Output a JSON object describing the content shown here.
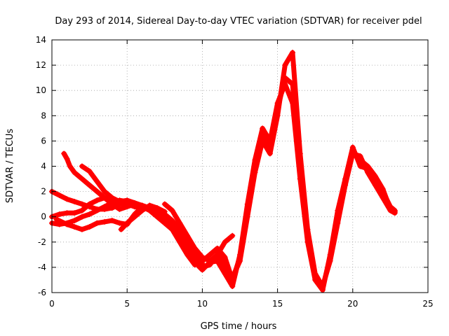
{
  "chart_data": {
    "type": "scatter",
    "title": "Day 293 of 2014, Sidereal Day-to-day VTEC variation (SDTVAR) for receiver pdel",
    "xlabel": "GPS time / hours",
    "ylabel": "SDTVAR / TECUs",
    "xlim": [
      0,
      25
    ],
    "ylim": [
      -6,
      14
    ],
    "xticks": [
      "0",
      "5",
      "10",
      "15",
      "20",
      "25"
    ],
    "yticks": [
      "-6",
      "-4",
      "-2",
      "0",
      "2",
      "4",
      "6",
      "8",
      "10",
      "12",
      "14"
    ],
    "grid": true,
    "marker": "+",
    "color": "#ff0000",
    "series": [
      {
        "name": "trace-a",
        "x": [
          0.0,
          0.5,
          1.0,
          1.5,
          2.0,
          2.5,
          3.0,
          3.5,
          4.0,
          4.5,
          5.0,
          5.5,
          6.0,
          6.5,
          7.0,
          7.5,
          8.0,
          8.5,
          9.0,
          9.5,
          10.0,
          10.5,
          11.0,
          11.5,
          12.0,
          12.5,
          13.0,
          13.5,
          14.0,
          14.5,
          15.0,
          15.5,
          16.0,
          16.5,
          17.0,
          17.5,
          18.0,
          18.5,
          19.0,
          19.5,
          20.0,
          20.5,
          21.0,
          21.5,
          22.0,
          22.5,
          22.8
        ],
        "y": [
          2.0,
          1.7,
          1.4,
          1.2,
          1.0,
          0.8,
          0.6,
          0.6,
          0.7,
          1.0,
          1.1,
          1.0,
          0.8,
          0.6,
          0.3,
          0.0,
          -0.5,
          -1.2,
          -2.2,
          -3.3,
          -4.0,
          -3.8,
          -3.0,
          -3.8,
          -4.8,
          -3.5,
          0.0,
          3.5,
          6.0,
          5.0,
          8.0,
          12.0,
          13.0,
          5.0,
          -1.0,
          -4.5,
          -5.5,
          -3.5,
          -0.5,
          2.5,
          5.0,
          4.8,
          3.5,
          2.5,
          1.5,
          0.5,
          0.3
        ]
      },
      {
        "name": "trace-b",
        "x": [
          0.0,
          0.5,
          1.0,
          1.5,
          2.0,
          2.5,
          3.0,
          3.5,
          4.0,
          4.5,
          5.0,
          5.5,
          6.0,
          6.5,
          7.0,
          7.5,
          8.0,
          8.5,
          9.0,
          9.5,
          10.0,
          10.5,
          11.0,
          11.5,
          12.0,
          12.5,
          13.0,
          13.5,
          14.0,
          14.5,
          15.0,
          15.5,
          16.0,
          16.5,
          17.0,
          17.5,
          18.0,
          18.5,
          19.0,
          19.5,
          20.0,
          20.5,
          21.0,
          21.5,
          22.0,
          22.5,
          22.8
        ],
        "y": [
          0.0,
          0.2,
          0.3,
          0.3,
          0.5,
          1.0,
          1.3,
          1.5,
          1.4,
          1.2,
          1.0,
          0.8,
          0.7,
          0.6,
          0.3,
          0.0,
          -0.8,
          -1.5,
          -2.5,
          -3.6,
          -4.2,
          -3.6,
          -3.5,
          -4.5,
          -5.5,
          -3.0,
          1.0,
          4.5,
          7.0,
          6.0,
          9.0,
          10.5,
          9.0,
          3.0,
          -2.0,
          -5.0,
          -5.8,
          -3.0,
          0.5,
          3.0,
          5.5,
          4.0,
          3.8,
          3.0,
          2.0,
          0.8,
          0.5
        ]
      },
      {
        "name": "trace-c",
        "x": [
          0.0,
          0.5,
          1.0,
          1.5,
          2.0,
          2.5,
          3.0,
          3.5,
          4.0,
          4.5,
          5.0,
          5.5,
          6.0,
          6.5,
          7.0,
          7.5,
          8.0,
          8.5,
          9.0,
          9.5,
          10.0,
          10.5,
          11.0,
          11.5,
          12.0,
          12.5,
          13.0,
          13.5,
          14.0,
          14.5,
          15.0,
          15.5,
          16.0,
          16.5,
          17.0,
          17.5,
          18.0,
          18.5,
          19.0,
          19.5,
          20.0,
          20.5,
          21.0,
          21.5,
          22.0,
          22.5,
          22.8
        ],
        "y": [
          -0.5,
          -0.6,
          -0.5,
          -0.3,
          0.0,
          0.2,
          0.5,
          0.8,
          1.1,
          1.3,
          1.2,
          1.0,
          0.8,
          0.5,
          0.0,
          -0.5,
          -1.0,
          -2.0,
          -3.0,
          -3.8,
          -3.5,
          -3.0,
          -2.5,
          -3.2,
          -5.0,
          -3.2,
          0.5,
          4.0,
          6.5,
          5.5,
          8.5,
          11.0,
          10.5,
          4.0,
          -1.5,
          -4.8,
          -5.6,
          -3.2,
          0.0,
          2.8,
          5.2,
          4.5,
          4.0,
          3.2,
          2.2,
          0.6,
          0.4
        ]
      },
      {
        "name": "trace-d",
        "x": [
          0.8,
          1.0,
          1.2,
          1.5,
          2.0,
          2.5,
          3.0,
          3.5,
          4.0,
          4.5,
          5.0,
          5.5,
          6.0,
          6.5,
          7.0,
          7.5,
          8.0,
          8.5,
          9.0,
          9.5,
          10.0
        ],
        "y": [
          5.0,
          4.6,
          4.0,
          3.5,
          3.0,
          2.5,
          2.0,
          1.5,
          1.0,
          0.6,
          0.8,
          1.0,
          0.9,
          0.7,
          0.4,
          0.2,
          -0.3,
          -1.0,
          -2.0,
          -3.0,
          -3.7
        ]
      },
      {
        "name": "trace-e",
        "x": [
          2.0,
          2.5,
          3.0,
          3.5,
          4.0,
          4.5,
          5.0,
          5.5,
          6.0,
          6.5,
          7.0
        ],
        "y": [
          4.0,
          3.6,
          2.8,
          2.0,
          1.5,
          1.2,
          1.3,
          1.1,
          0.9,
          0.6,
          0.4
        ]
      },
      {
        "name": "trace-f",
        "x": [
          0.3,
          1.0,
          1.5,
          2.0,
          2.5,
          3.0,
          3.5,
          4.0,
          4.5,
          5.0,
          5.5,
          6.0
        ],
        "y": [
          -0.2,
          -0.6,
          -0.8,
          -1.0,
          -0.8,
          -0.5,
          -0.4,
          -0.3,
          -0.5,
          -0.6,
          0.2,
          0.8
        ]
      },
      {
        "name": "trace-g",
        "x": [
          4.6,
          5.0,
          5.5,
          6.0,
          6.5,
          7.0,
          7.5
        ],
        "y": [
          -1.0,
          -0.5,
          0.0,
          0.5,
          0.9,
          0.7,
          0.4
        ]
      },
      {
        "name": "trace-h",
        "x": [
          7.5,
          8.0,
          8.5,
          9.0,
          9.5,
          10.0,
          10.5,
          11.0,
          11.5,
          12.0
        ],
        "y": [
          1.0,
          0.5,
          -0.5,
          -1.5,
          -2.5,
          -3.2,
          -3.5,
          -3.0,
          -2.0,
          -1.5
        ]
      }
    ]
  }
}
